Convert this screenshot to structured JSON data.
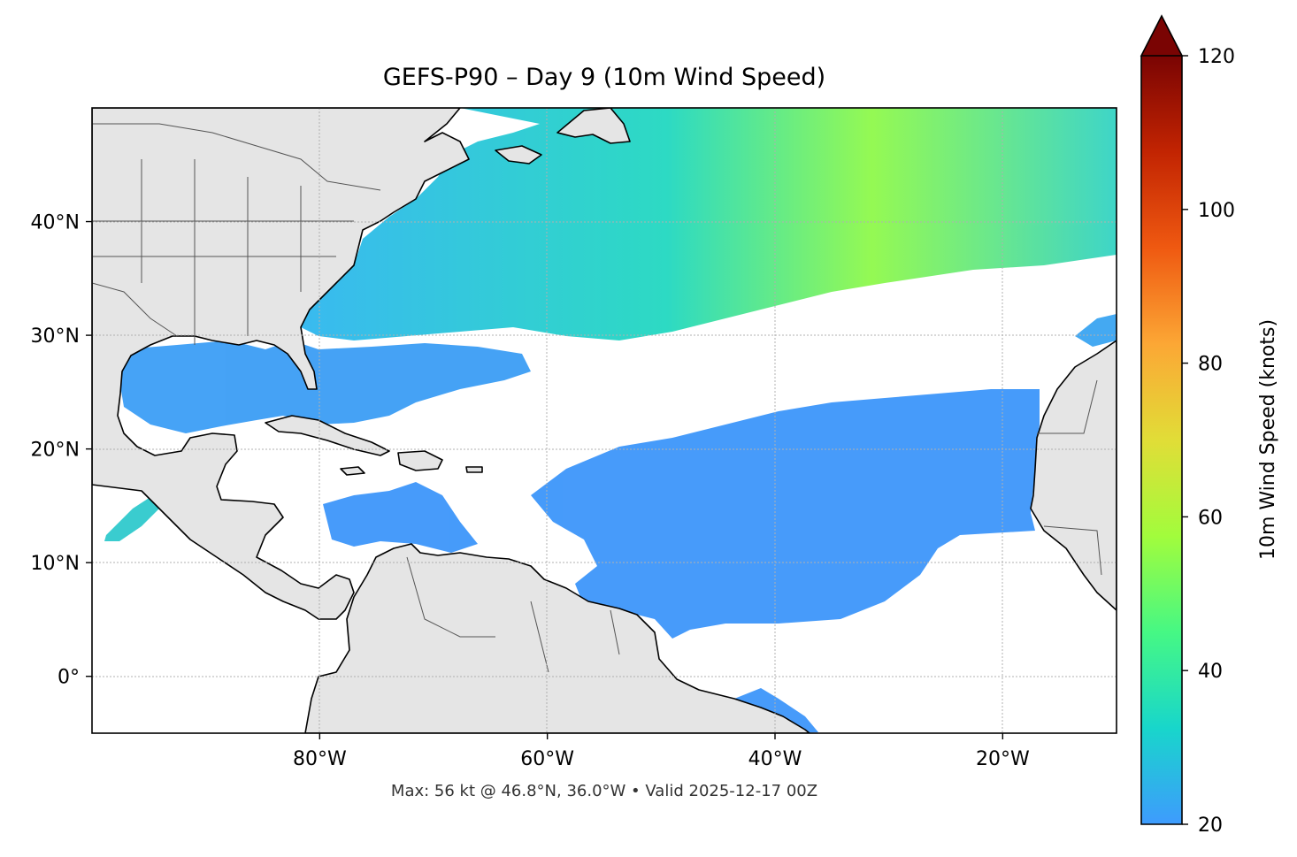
{
  "title": "GEFS-P90 – Day 9 (10m Wind Speed)",
  "footer": "Max: 56 kt @ 46.8°N, 36.0°W • Valid 2025-12-17 00Z",
  "map": {
    "extent": {
      "lon_min": -100,
      "lon_max": -10,
      "lat_min": -5,
      "lat_max": 50
    },
    "lat_ticks": [
      {
        "value": 40,
        "label": "40°N"
      },
      {
        "value": 30,
        "label": "30°N"
      },
      {
        "value": 20,
        "label": "20°N"
      },
      {
        "value": 10,
        "label": "10°N"
      },
      {
        "value": 0,
        "label": "0°"
      }
    ],
    "lon_ticks": [
      {
        "value": -80,
        "label": "80°W"
      },
      {
        "value": -60,
        "label": "60°W"
      },
      {
        "value": -40,
        "label": "40°W"
      },
      {
        "value": -20,
        "label": "20°W"
      }
    ],
    "land_color": "#e5e5e5",
    "ocean_color": "#ffffff",
    "gridlines": true
  },
  "colorbar": {
    "label": "10m Wind Speed (knots)",
    "min": 20,
    "max": 120,
    "extend": "max",
    "ticks": [
      {
        "value": 20,
        "label": "20"
      },
      {
        "value": 40,
        "label": "40"
      },
      {
        "value": 60,
        "label": "60"
      },
      {
        "value": 80,
        "label": "80"
      },
      {
        "value": 100,
        "label": "100"
      },
      {
        "value": 120,
        "label": "120"
      }
    ],
    "colors": [
      "#3e9bfe",
      "#18d6cb",
      "#46f884",
      "#a2fc3c",
      "#e1dd37",
      "#fca735",
      "#ef5911",
      "#c22402",
      "#7a0403"
    ]
  },
  "max_wind": {
    "value_kt": 56,
    "lat": 46.8,
    "lon": -36.0
  },
  "valid_time": "2025-12-17 00Z"
}
